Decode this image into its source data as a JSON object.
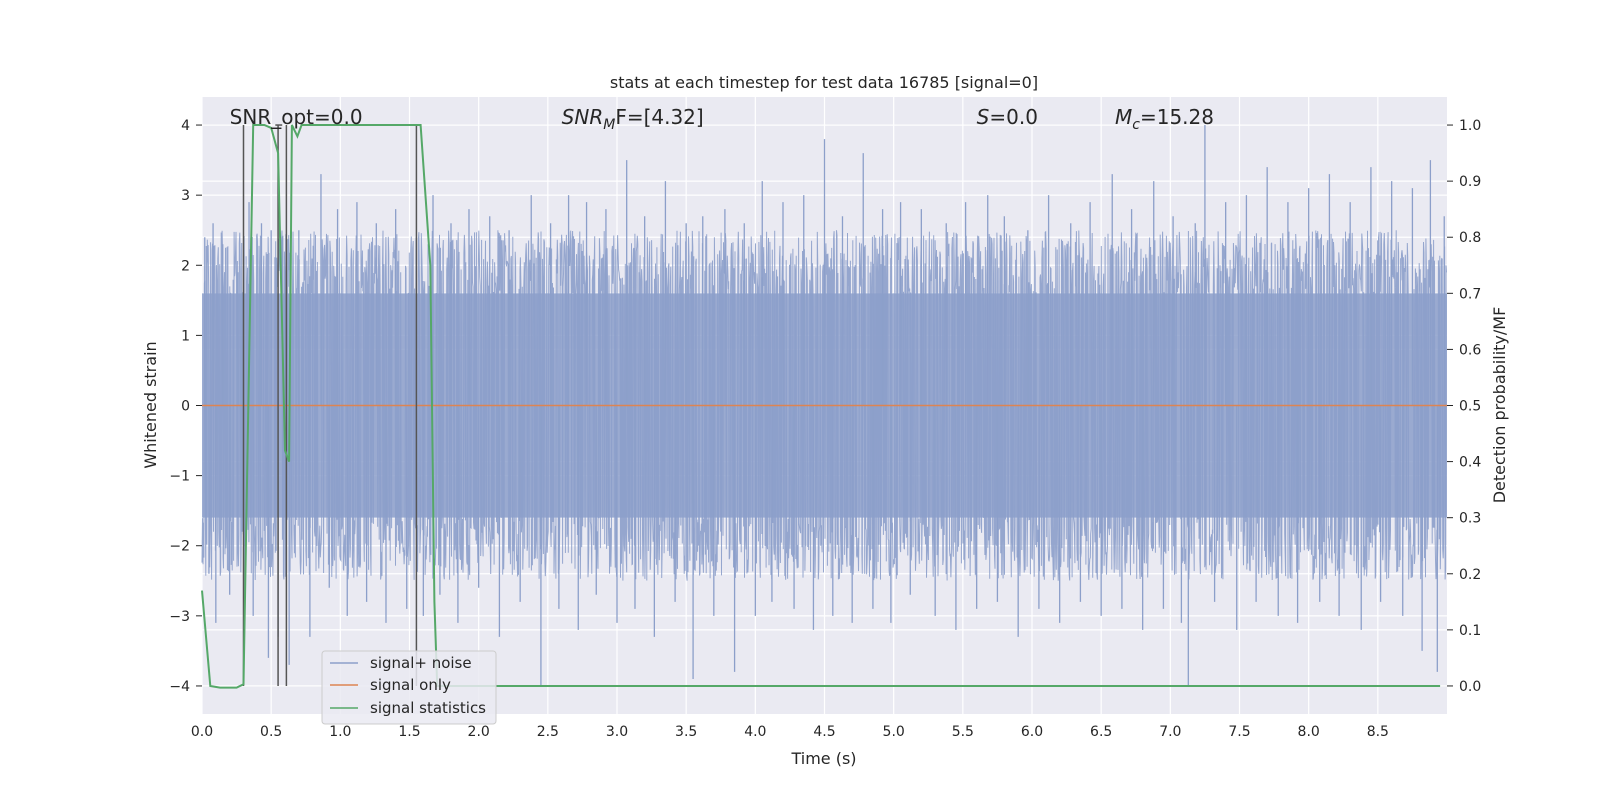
{
  "chart_data": {
    "type": "line",
    "title": "stats at each timestep for test data 16785 [signal=0]",
    "xlabel": "Time (s)",
    "ylabel": "Whitened strain",
    "ylabel_right": "Detection probability/MF",
    "xlim": [
      0,
      9.0
    ],
    "ylim": [
      -4.4,
      4.4
    ],
    "ylim_right": [
      -0.05,
      1.05
    ],
    "x_ticks": [
      "0.0",
      "0.5",
      "1.0",
      "1.5",
      "2.0",
      "2.5",
      "3.0",
      "3.5",
      "4.0",
      "4.5",
      "5.0",
      "5.5",
      "6.0",
      "6.5",
      "7.0",
      "7.5",
      "8.0",
      "8.5"
    ],
    "y_ticks": [
      "−4",
      "−3",
      "−2",
      "−1",
      "0",
      "1",
      "2",
      "3",
      "4"
    ],
    "y_ticks_right": [
      "0.0",
      "0.1",
      "0.2",
      "0.3",
      "0.4",
      "0.5",
      "0.6",
      "0.7",
      "0.8",
      "0.9",
      "1.0"
    ],
    "grid": true,
    "legend_position": "lower-left",
    "annotations": [
      {
        "text": "SNR_opt=0.0",
        "x": 0.2
      },
      {
        "text_main": "SNR",
        "text_sub": "M",
        "text_rest": "F=[4.32]",
        "x": 2.6
      },
      {
        "text_main": "S",
        "text_sub": "",
        "text_rest": "=0.0",
        "x": 5.6
      },
      {
        "text_main": "M",
        "text_sub": "c",
        "text_rest": "=15.28",
        "x": 6.6
      }
    ],
    "series": [
      {
        "name": "signal+ noise",
        "color": "#8c9fca",
        "envelope_note": "dense whitened noise, approx within ±2.5 with spikes to ±4",
        "spikes": [
          [
            0.02,
            2.4
          ],
          [
            0.05,
            -2.4
          ],
          [
            0.08,
            2.6
          ],
          [
            0.1,
            -3.1
          ],
          [
            0.15,
            2.3
          ],
          [
            0.2,
            -2.7
          ],
          [
            0.26,
            1.9
          ],
          [
            0.31,
            -2.9
          ],
          [
            0.34,
            2.9
          ],
          [
            0.37,
            -3.0
          ],
          [
            0.43,
            2.6
          ],
          [
            0.48,
            -3.6
          ],
          [
            0.5,
            2.5
          ],
          [
            0.55,
            -3.3
          ],
          [
            0.58,
            2.4
          ],
          [
            0.63,
            -3.7
          ],
          [
            0.7,
            2.5
          ],
          [
            0.78,
            -3.3
          ],
          [
            0.86,
            3.3
          ],
          [
            0.92,
            -2.6
          ],
          [
            0.98,
            2.8
          ],
          [
            1.05,
            -3.0
          ],
          [
            1.12,
            2.9
          ],
          [
            1.19,
            -2.8
          ],
          [
            1.26,
            2.6
          ],
          [
            1.33,
            -3.1
          ],
          [
            1.4,
            2.8
          ],
          [
            1.48,
            -2.9
          ],
          [
            1.55,
            2.4
          ],
          [
            1.6,
            -3.0
          ],
          [
            1.67,
            3.0
          ],
          [
            1.72,
            -2.7
          ],
          [
            1.8,
            2.6
          ],
          [
            1.85,
            -3.1
          ],
          [
            1.93,
            2.8
          ],
          [
            2.0,
            -2.6
          ],
          [
            2.08,
            2.7
          ],
          [
            2.15,
            -3.3
          ],
          [
            2.22,
            2.5
          ],
          [
            2.3,
            -2.8
          ],
          [
            2.38,
            3.0
          ],
          [
            2.45,
            -4.0
          ],
          [
            2.52,
            2.6
          ],
          [
            2.58,
            -2.9
          ],
          [
            2.65,
            3.0
          ],
          [
            2.72,
            -3.2
          ],
          [
            2.78,
            2.9
          ],
          [
            2.85,
            -2.7
          ],
          [
            2.92,
            2.8
          ],
          [
            3.0,
            -3.1
          ],
          [
            3.07,
            3.5
          ],
          [
            3.13,
            -2.9
          ],
          [
            3.2,
            2.7
          ],
          [
            3.27,
            -3.3
          ],
          [
            3.35,
            3.2
          ],
          [
            3.42,
            -2.8
          ],
          [
            3.5,
            2.6
          ],
          [
            3.55,
            -3.9
          ],
          [
            3.62,
            2.7
          ],
          [
            3.7,
            -3.0
          ],
          [
            3.78,
            2.8
          ],
          [
            3.85,
            -3.8
          ],
          [
            3.92,
            2.6
          ],
          [
            4.0,
            -3.0
          ],
          [
            4.05,
            3.2
          ],
          [
            4.12,
            -2.8
          ],
          [
            4.2,
            2.9
          ],
          [
            4.28,
            -2.9
          ],
          [
            4.35,
            3.0
          ],
          [
            4.42,
            -3.2
          ],
          [
            4.5,
            3.8
          ],
          [
            4.56,
            -3.0
          ],
          [
            4.63,
            2.7
          ],
          [
            4.7,
            -3.1
          ],
          [
            4.78,
            3.6
          ],
          [
            4.85,
            -2.9
          ],
          [
            4.92,
            2.8
          ],
          [
            4.98,
            -3.1
          ],
          [
            5.05,
            2.9
          ],
          [
            5.12,
            -2.7
          ],
          [
            5.2,
            2.8
          ],
          [
            5.3,
            -3.0
          ],
          [
            5.38,
            2.6
          ],
          [
            5.45,
            -3.2
          ],
          [
            5.52,
            2.9
          ],
          [
            5.6,
            -2.9
          ],
          [
            5.68,
            3.0
          ],
          [
            5.75,
            -2.8
          ],
          [
            5.8,
            2.7
          ],
          [
            5.9,
            -3.3
          ],
          [
            5.97,
            2.5
          ],
          [
            6.05,
            -2.9
          ],
          [
            6.12,
            3.0
          ],
          [
            6.2,
            -3.1
          ],
          [
            6.28,
            2.6
          ],
          [
            6.35,
            -2.8
          ],
          [
            6.42,
            2.9
          ],
          [
            6.5,
            -3.0
          ],
          [
            6.58,
            3.3
          ],
          [
            6.65,
            -2.9
          ],
          [
            6.72,
            2.8
          ],
          [
            6.8,
            -3.2
          ],
          [
            6.88,
            3.2
          ],
          [
            6.95,
            -2.9
          ],
          [
            7.02,
            2.7
          ],
          [
            7.08,
            -3.1
          ],
          [
            7.13,
            -4.0
          ],
          [
            7.18,
            2.6
          ],
          [
            7.25,
            4.0
          ],
          [
            7.32,
            -2.8
          ],
          [
            7.4,
            2.9
          ],
          [
            7.48,
            -3.2
          ],
          [
            7.55,
            3.0
          ],
          [
            7.62,
            -2.8
          ],
          [
            7.7,
            3.4
          ],
          [
            7.78,
            -3.0
          ],
          [
            7.85,
            2.9
          ],
          [
            7.92,
            -3.1
          ],
          [
            8.0,
            3.1
          ],
          [
            8.08,
            -2.8
          ],
          [
            8.15,
            3.3
          ],
          [
            8.22,
            -3.0
          ],
          [
            8.3,
            2.9
          ],
          [
            8.38,
            -3.2
          ],
          [
            8.45,
            3.4
          ],
          [
            8.52,
            -2.8
          ],
          [
            8.6,
            3.2
          ],
          [
            8.68,
            -3.0
          ],
          [
            8.75,
            3.1
          ],
          [
            8.82,
            -3.5
          ],
          [
            8.88,
            3.5
          ],
          [
            8.93,
            -3.8
          ],
          [
            8.98,
            2.7
          ]
        ]
      },
      {
        "name": "signal only",
        "color": "#dd8452",
        "x": [
          0,
          9.0
        ],
        "values": [
          0,
          0
        ]
      },
      {
        "name": "signal statistics",
        "color": "#55a868",
        "axis": "right",
        "x": [
          0,
          0.06,
          0.13,
          0.25,
          0.3,
          0.37,
          0.45,
          0.5,
          0.55,
          0.6,
          0.63,
          0.65,
          0.69,
          0.72,
          1.58,
          1.65,
          1.68,
          1.7,
          8.95
        ],
        "values": [
          0.17,
          0.0,
          -0.003,
          -0.003,
          0.003,
          1.0,
          1.0,
          0.995,
          0.95,
          0.42,
          0.4,
          1.0,
          0.98,
          1.0,
          1.0,
          0.75,
          0.15,
          0.0,
          0.0
        ]
      },
      {
        "name": "",
        "color": "#555555",
        "kind": "vertical-markers",
        "x": [
          0.3,
          0.55,
          0.61,
          1.55
        ],
        "y_top": [
          4.0,
          4.0,
          4.0,
          4.0
        ],
        "y_bottom": [
          -4.0,
          -4.0,
          -4.0,
          -4.0
        ]
      }
    ]
  }
}
